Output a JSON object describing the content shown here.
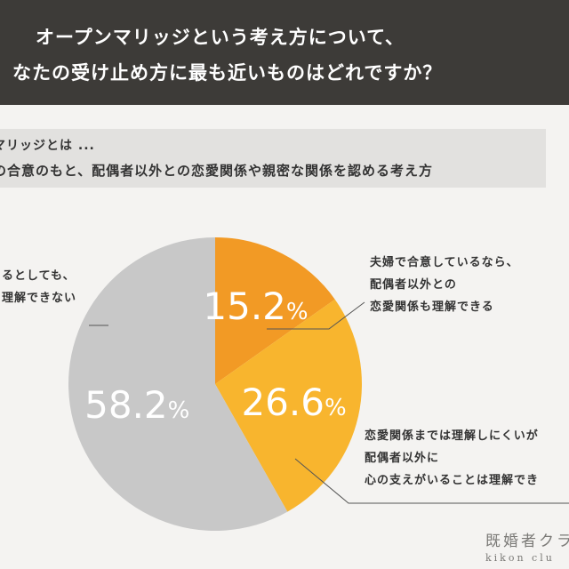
{
  "header": {
    "line1": "オープンマリッジという考え方について、",
    "line2": "なたの受け止め方に最も近いものはどれですか？"
  },
  "definition": {
    "line1": "マリッジとは ...",
    "line2": "の合意のもと、配偶者以外との恋愛関係や親密な関係を認める考え方"
  },
  "chart_data": {
    "type": "pie",
    "title": "",
    "slices": [
      {
        "label": "夫婦で合意しているなら、配偶者以外との恋愛関係も理解できる",
        "value": 15.2,
        "display": "15.2%",
        "color": "#f29a25"
      },
      {
        "label": "恋愛関係までは理解しにくいが、配偶者以外に心の支えがいることは理解でき",
        "value": 26.6,
        "display": "26.6%",
        "color": "#f8b52e"
      },
      {
        "label": "るとしても、理解できない",
        "value": 58.2,
        "display": "58.2%",
        "color": "#c8c8c8"
      }
    ]
  },
  "annotations": {
    "left": [
      "るとしても、",
      "理解できない"
    ],
    "right_top": [
      "夫婦で合意しているなら、",
      "配偶者以外との",
      "恋愛関係も理解できる"
    ],
    "right_bottom": [
      "恋愛関係までは理解しにくいが",
      "配偶者以外に",
      "心の支えがいることは理解でき"
    ]
  },
  "logo": {
    "main": "既婚者クラ",
    "sub": "kikon clu"
  }
}
